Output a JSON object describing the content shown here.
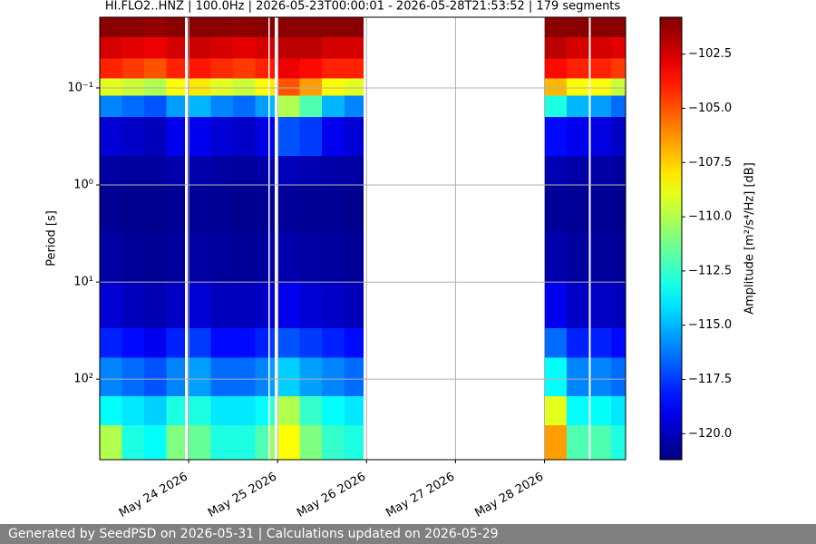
{
  "chart_data": {
    "type": "spectrogram",
    "title": "HI.FLO2..HNZ | 100.0Hz | 2026-05-23T00:00:01 - 2026-05-28T21:53:52 | 179 segments",
    "ylabel": "Period [s]",
    "colorbar_label": "Amplitude [m²/s⁴/Hz] [dB]",
    "colormap": "jet",
    "yscale": "log",
    "grid": true,
    "xlim": [
      "2026-05-23T00:00:01",
      "2026-05-28T21:53:52"
    ],
    "xticks": [
      {
        "value": "2026-05-24T00:00:00",
        "label": "May 24 2026"
      },
      {
        "value": "2026-05-25T00:00:00",
        "label": "May 25 2026"
      },
      {
        "value": "2026-05-26T00:00:00",
        "label": "May 26 2026"
      },
      {
        "value": "2026-05-27T00:00:00",
        "label": "May 27 2026"
      },
      {
        "value": "2026-05-28T00:00:00",
        "label": "May 28 2026"
      }
    ],
    "ylim": [
      0.0187,
      676
    ],
    "yticks": [
      {
        "value": 0.1,
        "label": "10⁻¹"
      },
      {
        "value": 1,
        "label": "10⁰"
      },
      {
        "value": 10,
        "label": "10¹"
      },
      {
        "value": 100,
        "label": "10²"
      }
    ],
    "clim": [
      -121.2,
      -100.8
    ],
    "cticks": [
      {
        "value": -102.5,
        "label": "−102.5"
      },
      {
        "value": -105.0,
        "label": "−105.0"
      },
      {
        "value": -107.5,
        "label": "−107.5"
      },
      {
        "value": -110.0,
        "label": "−110.0"
      },
      {
        "value": -112.5,
        "label": "−112.5"
      },
      {
        "value": -115.0,
        "label": "−115.0"
      },
      {
        "value": -117.5,
        "label": "−117.5"
      },
      {
        "value": -120.0,
        "label": "−120.0"
      }
    ],
    "period_bins": [
      0.0187,
      0.03,
      0.05,
      0.08,
      0.12,
      0.2,
      0.5,
      1,
      3,
      10,
      30,
      60,
      150,
      300,
      676
    ],
    "columns": [
      {
        "start": "2026-05-23T00:00:01",
        "end": "2026-05-23T06:00:00",
        "values": [
          -101,
          -102.5,
          -104,
          -109,
          -116,
          -119.5,
          -120.5,
          -120.8,
          -120.5,
          -119.5,
          -118,
          -116,
          -113.5,
          -110
        ]
      },
      {
        "start": "2026-05-23T06:00:00",
        "end": "2026-05-23T12:00:00",
        "values": [
          -101,
          -102.8,
          -104.5,
          -109.5,
          -116.5,
          -119.8,
          -120.6,
          -120.9,
          -120.7,
          -120,
          -118.5,
          -116.5,
          -114,
          -113
        ]
      },
      {
        "start": "2026-05-23T12:00:00",
        "end": "2026-05-23T18:00:00",
        "values": [
          -101.2,
          -103,
          -105,
          -110,
          -117,
          -120,
          -120.6,
          -120.9,
          -120.8,
          -120.2,
          -119,
          -117,
          -114.5,
          -113.5
        ]
      },
      {
        "start": "2026-05-23T18:00:00",
        "end": "2026-05-23T23:00:00",
        "values": [
          -101,
          -102.5,
          -104,
          -108.5,
          -115.5,
          -119,
          -120.3,
          -120.8,
          -120.6,
          -119.8,
          -118,
          -116,
          -113,
          -111
        ]
      },
      {
        "start": "2026-05-23T23:45:00",
        "end": "2026-05-24T06:00:00",
        "values": [
          -101,
          -102.3,
          -103.8,
          -108,
          -115,
          -119,
          -120.3,
          -120.7,
          -120.5,
          -119.5,
          -117.5,
          -115.5,
          -113,
          -111.5
        ]
      },
      {
        "start": "2026-05-24T06:00:00",
        "end": "2026-05-24T12:00:00",
        "values": [
          -101,
          -102.6,
          -104.2,
          -109,
          -116,
          -119.5,
          -120.5,
          -120.8,
          -120.6,
          -120,
          -118.5,
          -116.5,
          -114,
          -113
        ]
      },
      {
        "start": "2026-05-24T12:00:00",
        "end": "2026-05-24T18:00:00",
        "values": [
          -101.1,
          -102.8,
          -104.5,
          -109.5,
          -116.5,
          -119.8,
          -120.6,
          -120.9,
          -120.7,
          -120,
          -118.5,
          -116.5,
          -114,
          -113
        ]
      },
      {
        "start": "2026-05-24T18:00:00",
        "end": "2026-05-24T21:30:00",
        "values": [
          -101,
          -102.5,
          -104,
          -108.5,
          -115.5,
          -119.2,
          -120.4,
          -120.8,
          -120.6,
          -119.8,
          -118,
          -116,
          -113.5,
          -112
        ]
      },
      {
        "start": "2026-05-24T21:50:00",
        "end": "2026-05-24T23:15:00",
        "values": [
          -101,
          -102.4,
          -103.8,
          -108,
          -115,
          -119,
          -120.2,
          -120.7,
          -120.4,
          -119.5,
          -117.5,
          -115.5,
          -112.5,
          -110.5
        ]
      },
      {
        "start": "2026-05-25T00:15:00",
        "end": "2026-05-25T06:00:00",
        "values": [
          -101,
          -102,
          -103,
          -105,
          -110,
          -117,
          -120,
          -120.7,
          -120.3,
          -119,
          -117,
          -114.5,
          -110,
          -108.5
        ]
      },
      {
        "start": "2026-05-25T06:00:00",
        "end": "2026-05-25T12:00:00",
        "values": [
          -101,
          -102,
          -103.5,
          -106.5,
          -112,
          -117.5,
          -120.2,
          -120.8,
          -120.5,
          -119.5,
          -117.5,
          -115.5,
          -112.5,
          -111
        ]
      },
      {
        "start": "2026-05-25T12:00:00",
        "end": "2026-05-25T18:00:00",
        "values": [
          -101,
          -102.5,
          -104,
          -108.5,
          -115,
          -119,
          -120.4,
          -120.8,
          -120.6,
          -119.8,
          -118,
          -116,
          -113.5,
          -112.5
        ]
      },
      {
        "start": "2026-05-25T18:00:00",
        "end": "2026-05-25T23:15:00",
        "values": [
          -101,
          -102.5,
          -104,
          -109,
          -116,
          -119.5,
          -120.5,
          -120.9,
          -120.7,
          -120,
          -118.5,
          -116.5,
          -114,
          -113
        ]
      },
      {
        "start": "2026-05-28T00:00:00",
        "end": "2026-05-28T06:00:00",
        "values": [
          -101,
          -102,
          -103.5,
          -107,
          -113,
          -118.5,
          -120.2,
          -120.7,
          -120.3,
          -119,
          -116.5,
          -113.5,
          -109,
          -106.5
        ]
      },
      {
        "start": "2026-05-28T06:00:00",
        "end": "2026-05-28T12:00:00",
        "values": [
          -101,
          -102.5,
          -104,
          -108.5,
          -115,
          -119,
          -120.4,
          -120.8,
          -120.6,
          -119.8,
          -118,
          -116,
          -113.5,
          -112
        ]
      },
      {
        "start": "2026-05-28T12:30:00",
        "end": "2026-05-28T18:00:00",
        "values": [
          -101,
          -102.5,
          -104,
          -108.5,
          -115.5,
          -119.2,
          -120.4,
          -120.8,
          -120.6,
          -119.8,
          -118,
          -116,
          -113.5,
          -112
        ]
      },
      {
        "start": "2026-05-28T18:00:00",
        "end": "2026-05-28T21:53:52",
        "values": [
          -101,
          -102.8,
          -104.5,
          -109.5,
          -116.5,
          -119.8,
          -120.6,
          -120.9,
          -120.7,
          -120,
          -118.5,
          -116.5,
          -114,
          -113
        ]
      }
    ]
  },
  "footer": "Generated by SeedPSD on 2026-05-31 | Calculations updated on 2026-05-29"
}
